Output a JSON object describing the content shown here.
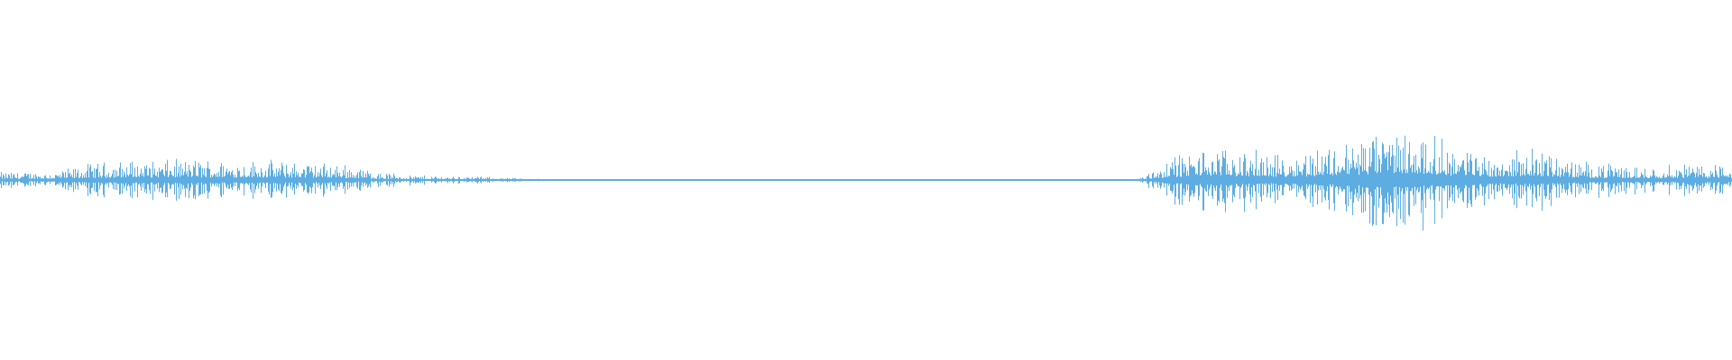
{
  "chart_data": {
    "type": "waveform",
    "title": "",
    "xlabel": "",
    "ylabel": "",
    "ylim": [
      -1,
      1
    ],
    "grid": false,
    "legend": "none",
    "color": "#5dade2",
    "background": "#ffffff",
    "series": [
      {
        "peak_amplitude_envelope": [
          0.05,
          0.05,
          0.1,
          0.12,
          0.12,
          0.13,
          0.12,
          0.12,
          0.11,
          0.1,
          0.05,
          0.03,
          0.025,
          0.02,
          0.01,
          0.005,
          0.005,
          0.005,
          0.005,
          0.005,
          0.005,
          0.005,
          0.005,
          0.005,
          0.005,
          0.005,
          0.005,
          0.005,
          0.005,
          0.005,
          0.005,
          0.005,
          0.15,
          0.2,
          0.18,
          0.15,
          0.2,
          0.25,
          0.32,
          0.28,
          0.2,
          0.15,
          0.2,
          0.12,
          0.1,
          0.08,
          0.1,
          0.1
        ]
      }
    ]
  }
}
